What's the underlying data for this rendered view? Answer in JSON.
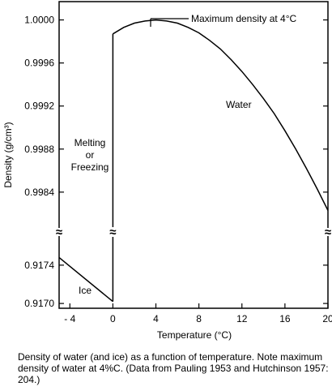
{
  "chart_data": {
    "type": "line",
    "xlabel": "Temperature (°C)",
    "ylabel": "Density (g/cm³)",
    "xlim": [
      -5,
      20
    ],
    "x_ticks": [
      {
        "value": -4,
        "label": "- 4"
      },
      {
        "value": 0,
        "label": "0"
      },
      {
        "value": 4,
        "label": "4"
      },
      {
        "value": 8,
        "label": "8"
      },
      {
        "value": 12,
        "label": "12"
      },
      {
        "value": 16,
        "label": "16"
      },
      {
        "value": 20,
        "label": "20"
      }
    ],
    "axis_break": {
      "symbol": "≈"
    },
    "upper_panel": {
      "ylim": [
        0.99815,
        1.00017
      ],
      "y_ticks": [
        "1.0000",
        "0.9996",
        "0.9992",
        "0.9988",
        "0.9984"
      ],
      "y_tick_values": [
        1.0,
        0.9996,
        0.9992,
        0.9988,
        0.9984
      ]
    },
    "lower_panel": {
      "ylim": [
        0.91695,
        0.91778
      ],
      "y_ticks": [
        "0.9174",
        "0.9170"
      ],
      "y_tick_values": [
        0.9174,
        0.917
      ]
    },
    "series": [
      {
        "name": "Water",
        "x": [
          0,
          1,
          2,
          3,
          4,
          5,
          6,
          7,
          8,
          9,
          10,
          11,
          12,
          13,
          14,
          15,
          16,
          17,
          18,
          19,
          20
        ],
        "y": [
          0.99987,
          0.99993,
          0.99997,
          0.99999,
          1.0,
          0.99999,
          0.99997,
          0.99993,
          0.99988,
          0.99981,
          0.99973,
          0.99963,
          0.99952,
          0.9994,
          0.99927,
          0.99913,
          0.99897,
          0.9988,
          0.99862,
          0.99843,
          0.99823
        ]
      },
      {
        "name": "Ice",
        "x": [
          -5,
          0
        ],
        "y": [
          0.91748,
          0.91702
        ]
      }
    ],
    "annotations": {
      "max_density": "Maximum density at 4°C",
      "water": "Water",
      "melting": [
        "Melting",
        "or",
        "Freezing"
      ],
      "ice": "Ice"
    }
  },
  "caption": "Density of water (and ice) as a function of temperature.  Note maximum density of water at 4%C.  (Data from Pauling 1953 and Hutchinson 1957:  204.)"
}
